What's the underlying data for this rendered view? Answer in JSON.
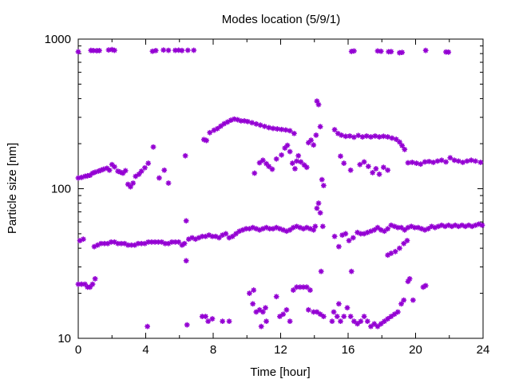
{
  "chart_data": {
    "type": "scatter",
    "title": "Modes location (5/9/1)",
    "xlabel": "Time [hour]",
    "ylabel": "Particle size [nm]",
    "xlim": [
      0,
      24
    ],
    "ylim": [
      10,
      1000
    ],
    "yscale": "log",
    "grid": false,
    "legend": "none",
    "x_ticks": [
      "0",
      "4",
      "8",
      "12",
      "16",
      "20",
      "24"
    ],
    "y_ticks": [
      "10",
      "100",
      "1000"
    ],
    "marker_color": "#9400d3",
    "points": [
      [
        0.0,
        823
      ],
      [
        0.75,
        840
      ],
      [
        0.9,
        838
      ],
      [
        1.1,
        836
      ],
      [
        1.25,
        838
      ],
      [
        1.8,
        846
      ],
      [
        2.0,
        851
      ],
      [
        2.15,
        841
      ],
      [
        4.4,
        829
      ],
      [
        4.6,
        838
      ],
      [
        5.05,
        845
      ],
      [
        5.35,
        841
      ],
      [
        5.75,
        841
      ],
      [
        5.95,
        843
      ],
      [
        6.15,
        839
      ],
      [
        6.5,
        842
      ],
      [
        6.85,
        842
      ],
      [
        16.2,
        827
      ],
      [
        16.35,
        833
      ],
      [
        17.75,
        833
      ],
      [
        17.95,
        829
      ],
      [
        18.4,
        823
      ],
      [
        18.55,
        825
      ],
      [
        19.05,
        810
      ],
      [
        19.2,
        815
      ],
      [
        20.6,
        840
      ],
      [
        21.8,
        820
      ],
      [
        21.95,
        818
      ],
      [
        0.0,
        118
      ],
      [
        0.2,
        119
      ],
      [
        0.4,
        121
      ],
      [
        0.55,
        122
      ],
      [
        0.7,
        123
      ],
      [
        0.85,
        127
      ],
      [
        1.0,
        129
      ],
      [
        1.2,
        131
      ],
      [
        1.35,
        133
      ],
      [
        1.5,
        135
      ],
      [
        1.7,
        137
      ],
      [
        1.85,
        133
      ],
      [
        2.0,
        145
      ],
      [
        2.15,
        140
      ],
      [
        2.35,
        131
      ],
      [
        2.5,
        129
      ],
      [
        2.65,
        127
      ],
      [
        2.8,
        132
      ],
      [
        2.95,
        107
      ],
      [
        3.1,
        103
      ],
      [
        3.25,
        109
      ],
      [
        3.4,
        121
      ],
      [
        3.6,
        125
      ],
      [
        3.75,
        131
      ],
      [
        3.95,
        138
      ],
      [
        4.15,
        148
      ],
      [
        4.45,
        190
      ],
      [
        4.8,
        118
      ],
      [
        5.1,
        133
      ],
      [
        5.35,
        109
      ],
      [
        6.35,
        166
      ],
      [
        7.45,
        213
      ],
      [
        7.6,
        210
      ],
      [
        7.8,
        237
      ],
      [
        8.05,
        246
      ],
      [
        8.25,
        252
      ],
      [
        8.45,
        262
      ],
      [
        8.65,
        272
      ],
      [
        8.85,
        279
      ],
      [
        9.05,
        287
      ],
      [
        9.25,
        292
      ],
      [
        9.45,
        289
      ],
      [
        9.65,
        284
      ],
      [
        9.85,
        284
      ],
      [
        10.05,
        281
      ],
      [
        10.3,
        276
      ],
      [
        10.55,
        271
      ],
      [
        10.8,
        266
      ],
      [
        11.05,
        261
      ],
      [
        11.3,
        256
      ],
      [
        11.55,
        253
      ],
      [
        11.8,
        251
      ],
      [
        12.05,
        249
      ],
      [
        12.3,
        247
      ],
      [
        12.55,
        244
      ],
      [
        12.8,
        234
      ],
      [
        10.45,
        127
      ],
      [
        10.75,
        149
      ],
      [
        10.95,
        155
      ],
      [
        11.15,
        147
      ],
      [
        11.3,
        141
      ],
      [
        11.5,
        135
      ],
      [
        11.75,
        158
      ],
      [
        12.05,
        168
      ],
      [
        12.25,
        187
      ],
      [
        12.4,
        195
      ],
      [
        12.55,
        177
      ],
      [
        12.7,
        148
      ],
      [
        12.85,
        136
      ],
      [
        12.95,
        153
      ],
      [
        13.05,
        166
      ],
      [
        13.2,
        151
      ],
      [
        13.4,
        144
      ],
      [
        13.55,
        139
      ],
      [
        13.65,
        203
      ],
      [
        13.8,
        211
      ],
      [
        13.95,
        196
      ],
      [
        14.1,
        228
      ],
      [
        14.15,
        385
      ],
      [
        14.25,
        365
      ],
      [
        14.35,
        260
      ],
      [
        14.45,
        115
      ],
      [
        14.55,
        105
      ],
      [
        15.2,
        248
      ],
      [
        15.4,
        234
      ],
      [
        15.6,
        228
      ],
      [
        15.85,
        224
      ],
      [
        16.1,
        225
      ],
      [
        16.35,
        221
      ],
      [
        16.6,
        227
      ],
      [
        16.85,
        222
      ],
      [
        17.1,
        225
      ],
      [
        17.35,
        222
      ],
      [
        17.6,
        225
      ],
      [
        17.85,
        222
      ],
      [
        18.1,
        224
      ],
      [
        18.35,
        222
      ],
      [
        18.6,
        218
      ],
      [
        18.85,
        214
      ],
      [
        19.05,
        205
      ],
      [
        19.2,
        194
      ],
      [
        19.35,
        183
      ],
      [
        15.55,
        165
      ],
      [
        15.75,
        148
      ],
      [
        16.15,
        133
      ],
      [
        16.7,
        145
      ],
      [
        16.95,
        151
      ],
      [
        17.2,
        141
      ],
      [
        17.45,
        128
      ],
      [
        17.65,
        136
      ],
      [
        17.85,
        125
      ],
      [
        18.1,
        139
      ],
      [
        18.35,
        133
      ],
      [
        19.55,
        149
      ],
      [
        19.8,
        150
      ],
      [
        20.05,
        148
      ],
      [
        20.3,
        146
      ],
      [
        20.55,
        151
      ],
      [
        20.8,
        152
      ],
      [
        21.05,
        150
      ],
      [
        21.3,
        153
      ],
      [
        21.55,
        155
      ],
      [
        21.8,
        151
      ],
      [
        22.05,
        161
      ],
      [
        22.3,
        155
      ],
      [
        22.55,
        153
      ],
      [
        22.8,
        150
      ],
      [
        23.05,
        153
      ],
      [
        23.3,
        155
      ],
      [
        23.55,
        153
      ],
      [
        23.85,
        150
      ],
      [
        0.1,
        45
      ],
      [
        0.3,
        46
      ],
      [
        0.95,
        41
      ],
      [
        1.15,
        42
      ],
      [
        1.35,
        43
      ],
      [
        1.55,
        43
      ],
      [
        1.75,
        43
      ],
      [
        1.95,
        44
      ],
      [
        2.15,
        44
      ],
      [
        2.35,
        43
      ],
      [
        2.55,
        43
      ],
      [
        2.75,
        43
      ],
      [
        2.95,
        42
      ],
      [
        3.15,
        42
      ],
      [
        3.35,
        42
      ],
      [
        3.55,
        43
      ],
      [
        3.75,
        43
      ],
      [
        3.95,
        43
      ],
      [
        4.15,
        44
      ],
      [
        4.35,
        44
      ],
      [
        4.55,
        44
      ],
      [
        4.75,
        44
      ],
      [
        4.95,
        44
      ],
      [
        5.15,
        43
      ],
      [
        5.35,
        43
      ],
      [
        5.55,
        44
      ],
      [
        5.75,
        44
      ],
      [
        5.95,
        44
      ],
      [
        6.15,
        42
      ],
      [
        6.3,
        43
      ],
      [
        6.4,
        61
      ],
      [
        6.55,
        46
      ],
      [
        6.75,
        47
      ],
      [
        6.95,
        46
      ],
      [
        7.15,
        47
      ],
      [
        7.35,
        48
      ],
      [
        7.55,
        48
      ],
      [
        7.75,
        49
      ],
      [
        7.95,
        48
      ],
      [
        8.15,
        48
      ],
      [
        8.35,
        47
      ],
      [
        8.55,
        49
      ],
      [
        8.75,
        50
      ],
      [
        8.95,
        47
      ],
      [
        9.15,
        48
      ],
      [
        9.35,
        50
      ],
      [
        9.55,
        52
      ],
      [
        9.75,
        53
      ],
      [
        9.95,
        54
      ],
      [
        10.15,
        54
      ],
      [
        10.35,
        55
      ],
      [
        10.55,
        54
      ],
      [
        10.75,
        53
      ],
      [
        10.95,
        54
      ],
      [
        11.15,
        55
      ],
      [
        11.35,
        54
      ],
      [
        11.55,
        54
      ],
      [
        11.75,
        55
      ],
      [
        11.95,
        54
      ],
      [
        12.15,
        53
      ],
      [
        12.35,
        52
      ],
      [
        12.55,
        53
      ],
      [
        12.75,
        55
      ],
      [
        12.95,
        56
      ],
      [
        13.15,
        55
      ],
      [
        13.35,
        54
      ],
      [
        13.55,
        55
      ],
      [
        13.75,
        54
      ],
      [
        13.95,
        53
      ],
      [
        14.05,
        56
      ],
      [
        14.15,
        74
      ],
      [
        14.25,
        80
      ],
      [
        14.35,
        69
      ],
      [
        14.5,
        56
      ],
      [
        15.2,
        48
      ],
      [
        15.45,
        41
      ],
      [
        15.65,
        49
      ],
      [
        15.85,
        50
      ],
      [
        16.05,
        45
      ],
      [
        16.3,
        47
      ],
      [
        16.55,
        51
      ],
      [
        16.75,
        50
      ],
      [
        16.95,
        50
      ],
      [
        17.15,
        51
      ],
      [
        17.35,
        52
      ],
      [
        17.55,
        53
      ],
      [
        17.75,
        55
      ],
      [
        17.95,
        53
      ],
      [
        18.15,
        52
      ],
      [
        18.35,
        54
      ],
      [
        18.55,
        57
      ],
      [
        18.75,
        56
      ],
      [
        18.95,
        55
      ],
      [
        19.15,
        55
      ],
      [
        19.35,
        53
      ],
      [
        19.55,
        55
      ],
      [
        19.75,
        56
      ],
      [
        19.95,
        55
      ],
      [
        20.15,
        55
      ],
      [
        20.35,
        54
      ],
      [
        20.55,
        53
      ],
      [
        20.75,
        54
      ],
      [
        20.95,
        56
      ],
      [
        21.15,
        55
      ],
      [
        21.35,
        56
      ],
      [
        21.55,
        57
      ],
      [
        21.75,
        56
      ],
      [
        21.95,
        57
      ],
      [
        22.15,
        56
      ],
      [
        22.35,
        57
      ],
      [
        22.55,
        56
      ],
      [
        22.75,
        57
      ],
      [
        22.95,
        56
      ],
      [
        23.15,
        57
      ],
      [
        23.35,
        56
      ],
      [
        23.55,
        57
      ],
      [
        23.75,
        58
      ],
      [
        23.95,
        57
      ],
      [
        18.35,
        36
      ],
      [
        18.55,
        37
      ],
      [
        18.8,
        38
      ],
      [
        19.05,
        40
      ],
      [
        19.3,
        43
      ],
      [
        19.5,
        45
      ],
      [
        6.4,
        33
      ],
      [
        14.4,
        28
      ],
      [
        16.2,
        28
      ],
      [
        0.0,
        23
      ],
      [
        0.2,
        23
      ],
      [
        0.4,
        23
      ],
      [
        0.55,
        22
      ],
      [
        0.7,
        22
      ],
      [
        0.85,
        23
      ],
      [
        1.0,
        25
      ],
      [
        4.1,
        12
      ],
      [
        6.45,
        12.3
      ],
      [
        7.35,
        14
      ],
      [
        7.55,
        14
      ],
      [
        7.7,
        13
      ],
      [
        7.95,
        13.5
      ],
      [
        8.55,
        13
      ],
      [
        8.95,
        13
      ],
      [
        10.15,
        20
      ],
      [
        10.4,
        21
      ],
      [
        10.35,
        17
      ],
      [
        10.55,
        15
      ],
      [
        10.75,
        15.5
      ],
      [
        10.95,
        15
      ],
      [
        11.1,
        16
      ],
      [
        11.15,
        13
      ],
      [
        10.85,
        12
      ],
      [
        11.75,
        19
      ],
      [
        11.95,
        14
      ],
      [
        12.15,
        14.5
      ],
      [
        12.35,
        15.5
      ],
      [
        12.55,
        13
      ],
      [
        12.75,
        21
      ],
      [
        12.95,
        22
      ],
      [
        13.15,
        22
      ],
      [
        13.35,
        22
      ],
      [
        13.55,
        22
      ],
      [
        13.75,
        21
      ],
      [
        13.65,
        15.5
      ],
      [
        13.95,
        15
      ],
      [
        14.15,
        15
      ],
      [
        14.35,
        14.5
      ],
      [
        14.55,
        14
      ],
      [
        15.15,
        15
      ],
      [
        15.35,
        14
      ],
      [
        15.55,
        13
      ],
      [
        15.75,
        14
      ],
      [
        15.95,
        16
      ],
      [
        16.15,
        14
      ],
      [
        16.35,
        13
      ],
      [
        16.55,
        12.5
      ],
      [
        16.75,
        13
      ],
      [
        16.95,
        14
      ],
      [
        17.15,
        13
      ],
      [
        17.35,
        12
      ],
      [
        17.55,
        12.5
      ],
      [
        17.75,
        12
      ],
      [
        17.95,
        12.5
      ],
      [
        18.15,
        13
      ],
      [
        18.35,
        13.5
      ],
      [
        18.55,
        14
      ],
      [
        18.75,
        14.5
      ],
      [
        18.95,
        15
      ],
      [
        19.15,
        17
      ],
      [
        19.3,
        18
      ],
      [
        19.55,
        24
      ],
      [
        19.65,
        25
      ],
      [
        19.85,
        18
      ],
      [
        20.45,
        22
      ],
      [
        20.6,
        22.5
      ],
      [
        15.45,
        17
      ],
      [
        15.05,
        13
      ]
    ]
  }
}
